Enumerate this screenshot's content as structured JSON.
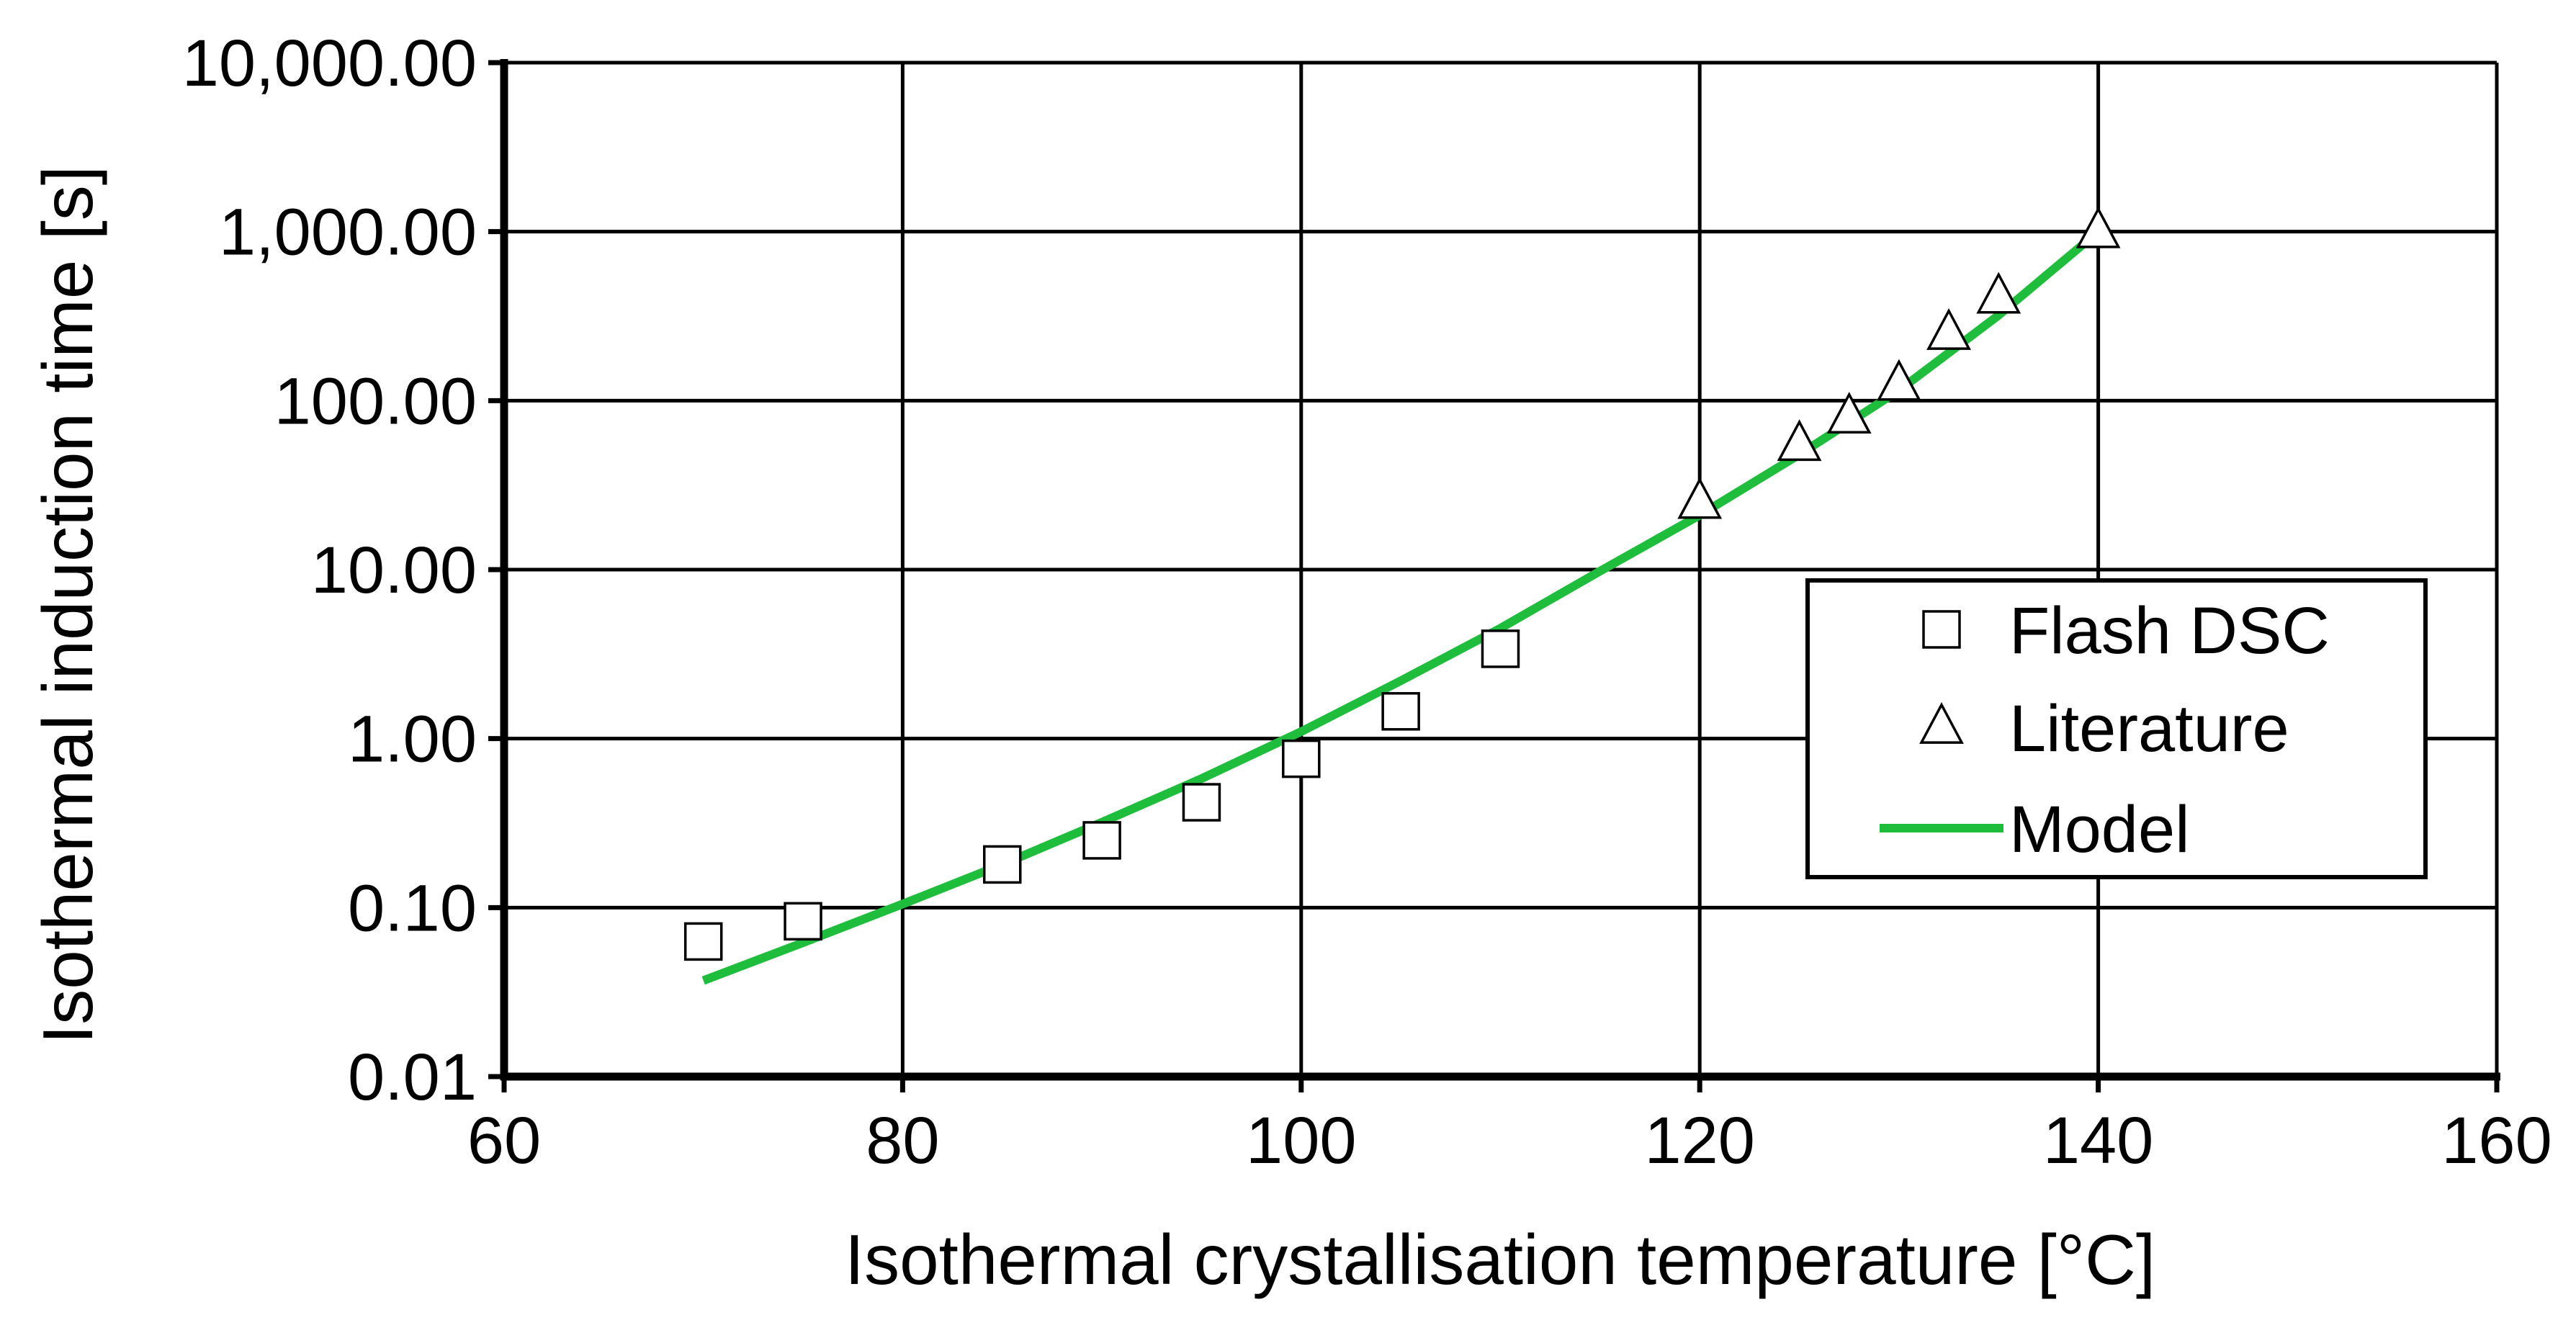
{
  "chart_data": {
    "type": "scatter",
    "title": "",
    "xlabel": "Isothermal crystallisation temperature   [°C]",
    "ylabel": "Isothermal induction time   [s]",
    "x_scale": "linear",
    "y_scale": "log",
    "xlim": [
      60,
      160
    ],
    "ylim": [
      0.01,
      10000
    ],
    "grid": true,
    "legend_position": "center-right",
    "x_ticks": [
      60,
      80,
      100,
      120,
      140,
      160
    ],
    "x_tick_labels": [
      "60",
      "80",
      "100",
      "120",
      "140",
      "160"
    ],
    "y_ticks": [
      0.01,
      0.1,
      1,
      10,
      100,
      1000,
      10000
    ],
    "y_tick_labels": [
      "0.01",
      "0.10",
      "1.00",
      "10.00",
      "100.00",
      "1,000.00",
      "10,000.00"
    ],
    "series": [
      {
        "name": "Flash DSC",
        "marker": "square",
        "x": [
          70,
          75,
          85,
          90,
          95,
          100,
          105,
          110
        ],
        "y": [
          0.063,
          0.083,
          0.18,
          0.25,
          0.42,
          0.76,
          1.45,
          3.4
        ]
      },
      {
        "name": "Literature",
        "marker": "triangle",
        "x": [
          120,
          125,
          127.5,
          130,
          132.5,
          135,
          140
        ],
        "y": [
          25,
          55,
          80,
          125,
          250,
          410,
          1000
        ]
      },
      {
        "name": "Model",
        "marker": "line",
        "color": "#1ebe3c",
        "x": [
          70,
          75,
          80,
          85,
          90,
          95,
          100,
          105,
          110,
          115,
          120,
          125,
          130,
          135,
          140
        ],
        "y": [
          0.037,
          0.062,
          0.105,
          0.18,
          0.32,
          0.58,
          1.1,
          2.2,
          4.5,
          9.8,
          21,
          48,
          115,
          320,
          1000
        ]
      }
    ]
  }
}
